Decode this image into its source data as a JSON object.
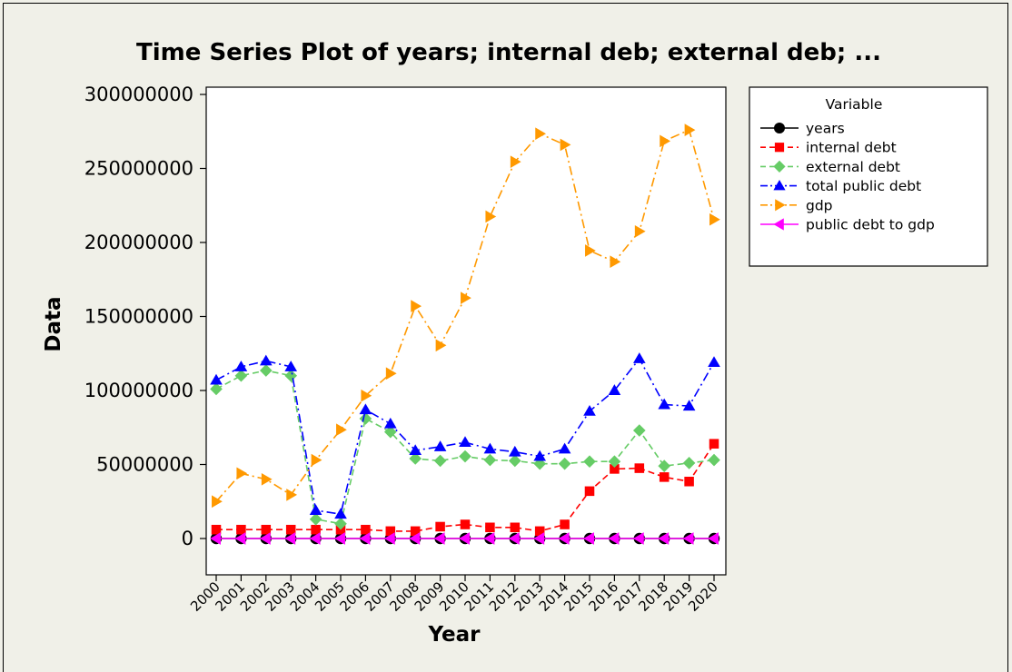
{
  "chart_data": {
    "type": "line",
    "title": "Time Series Plot of years; internal deb; external deb; ...",
    "xlabel": "Year",
    "ylabel": "Data",
    "ylim": [
      0,
      300000000
    ],
    "yticks": [
      "0",
      "50000000",
      "100000000",
      "150000000",
      "200000000",
      "250000000",
      "300000000"
    ],
    "categories": [
      "2000",
      "2001",
      "2002",
      "2003",
      "2004",
      "2005",
      "2006",
      "2007",
      "2008",
      "2009",
      "2010",
      "2011",
      "2012",
      "2013",
      "2014",
      "2015",
      "2016",
      "2017",
      "2018",
      "2019",
      "2020"
    ],
    "legend_title": "Variable",
    "legend_position": "right",
    "grid": false,
    "series": [
      {
        "name": "years",
        "color": "#000000",
        "marker": "circle",
        "dash": "solid",
        "values": [
          2000,
          2001,
          2002,
          2003,
          2004,
          2005,
          2006,
          2007,
          2008,
          2009,
          2010,
          2011,
          2012,
          2013,
          2014,
          2015,
          2016,
          2017,
          2018,
          2019,
          2020
        ]
      },
      {
        "name": "internal debt",
        "color": "#ff0000",
        "marker": "square",
        "dash": "dash",
        "values": [
          6000000,
          6000000,
          6000000,
          6000000,
          6000000,
          6000000,
          6000000,
          5000000,
          5000000,
          8000000,
          9500000,
          7500000,
          7500000,
          5000000,
          9500000,
          32000000,
          47000000,
          47500000,
          41500000,
          38500000,
          64000000
        ]
      },
      {
        "name": "external debt",
        "color": "#66cc66",
        "marker": "diamond",
        "dash": "dash",
        "values": [
          101000000,
          110000000,
          113500000,
          110000000,
          13000000,
          10000000,
          81000000,
          72000000,
          54000000,
          52500000,
          55500000,
          53000000,
          52500000,
          50500000,
          50500000,
          52000000,
          52000000,
          73000000,
          49000000,
          51000000,
          53000000
        ]
      },
      {
        "name": "total public debt",
        "color": "#0000ff",
        "marker": "triangle-up",
        "dash": "dashdot",
        "values": [
          107000000,
          116000000,
          120000000,
          116000000,
          19000000,
          16500000,
          87000000,
          77500000,
          59500000,
          62000000,
          65000000,
          60500000,
          58500000,
          55500000,
          60500000,
          86000000,
          100000000,
          121500000,
          90500000,
          89500000,
          119000000
        ]
      },
      {
        "name": "gdp",
        "color": "#ff9900",
        "marker": "triangle-right",
        "dash": "dashdot",
        "values": [
          25000000,
          44000000,
          40000000,
          29500000,
          53000000,
          73500000,
          96500000,
          111500000,
          157000000,
          130500000,
          162500000,
          217500000,
          254500000,
          273500000,
          266000000,
          194500000,
          187000000,
          207500000,
          268500000,
          276000000,
          215500000
        ]
      },
      {
        "name": "public debt to gdp",
        "color": "#ff00ff",
        "marker": "triangle-left",
        "dash": "solid",
        "values": [
          4,
          2.6,
          3,
          3.9,
          0.4,
          0.2,
          0.9,
          0.7,
          0.4,
          0.5,
          0.4,
          0.3,
          0.2,
          0.2,
          0.2,
          0.4,
          0.5,
          0.6,
          0.3,
          0.3,
          0.6
        ]
      }
    ]
  }
}
